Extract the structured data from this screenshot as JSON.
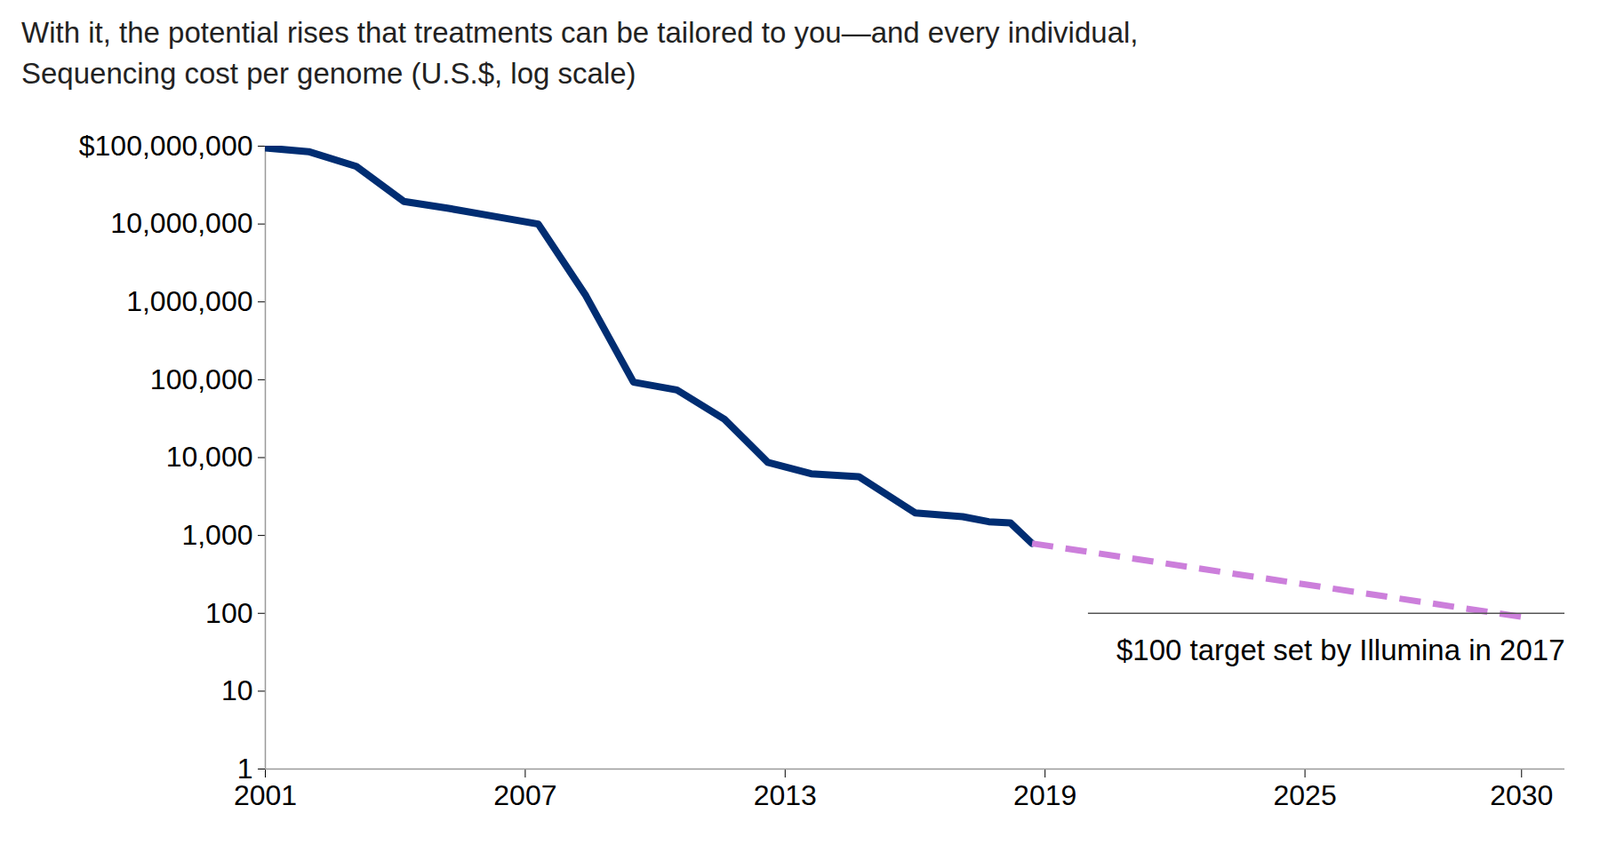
{
  "chart_data": {
    "type": "line",
    "title": "With it, the potential rises that treatments can be tailored to you—and every individual,",
    "subtitle": "Sequencing cost per genome (U.S.$, log scale)",
    "log": "y",
    "grid": false,
    "xlim": [
      2001,
      2031
    ],
    "xticks": [
      2001,
      2007,
      2013,
      2019,
      2025,
      2030
    ],
    "ylim": [
      1,
      100000000
    ],
    "yticks": [
      1,
      10,
      100,
      {
        "value": 1000,
        "label": "1,000"
      },
      {
        "value": 10000,
        "label": "10,000"
      },
      {
        "value": 100000,
        "label": "100,000"
      },
      {
        "value": 1000000,
        "label": "1,000,000"
      },
      {
        "value": 10000000,
        "label": "10,000,000"
      },
      {
        "value": 100000000,
        "label": "$100,000,000"
      }
    ],
    "series": [
      {
        "color": "#002d72",
        "line_style": "solid",
        "x": [
          2001,
          2002,
          2003.1,
          2004.2,
          2005.2,
          2006.3,
          2007.3,
          2008.4,
          2009.5,
          2010.5,
          2011.6,
          2012.6,
          2013.6,
          2014.7,
          2016.0,
          2017.1,
          2017.7,
          2018.2,
          2018.7
        ],
        "values": [
          95000000,
          85000000,
          55000000,
          19500000,
          16000000,
          12500000,
          10000000,
          1200000,
          93000,
          74000,
          31000,
          8700,
          6200,
          5700,
          1950,
          1740,
          1500,
          1450,
          790
        ]
      },
      {
        "color": "#cc7fdb",
        "line_style": "dashed",
        "x": [
          2018.7,
          2030
        ],
        "values": [
          790,
          90
        ]
      }
    ],
    "annotations": [
      {
        "text": "$100 target set by Illumina in 2017",
        "y": 100,
        "x": [
          2020,
          2031
        ]
      }
    ]
  }
}
